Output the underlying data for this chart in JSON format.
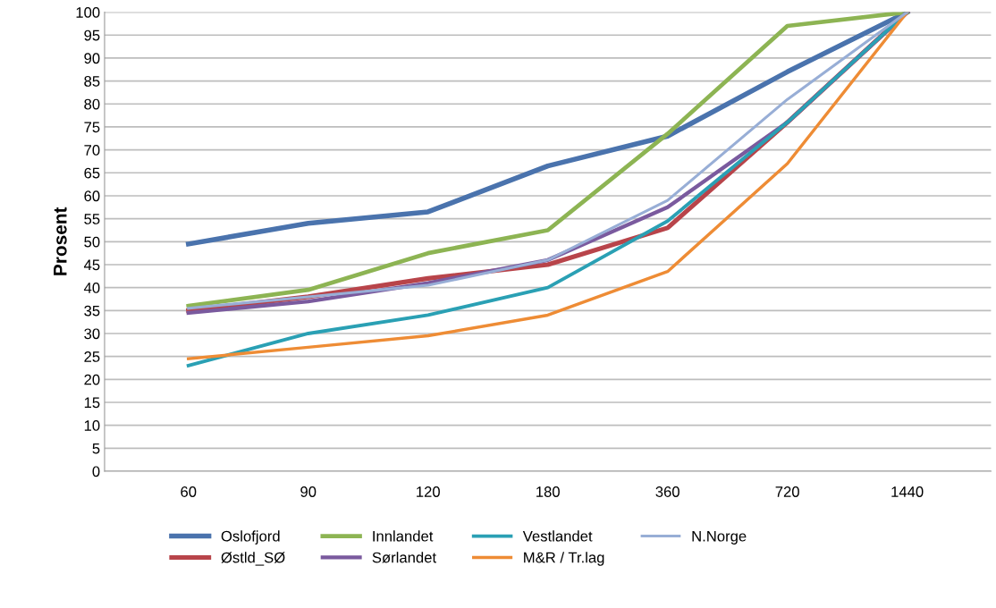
{
  "chart_data": {
    "type": "line",
    "ylabel": "Prosent",
    "categories": [
      "60",
      "90",
      "120",
      "180",
      "360",
      "720",
      "1440"
    ],
    "ylim": [
      0,
      100
    ],
    "yticks": [
      0,
      5,
      10,
      15,
      20,
      25,
      30,
      35,
      40,
      45,
      50,
      55,
      60,
      65,
      70,
      75,
      80,
      85,
      90,
      95,
      100
    ],
    "grid": "y",
    "legend": "bottom",
    "marker": "none",
    "line_style": "solid",
    "series": [
      {
        "name": "Oslofjord",
        "color": "#4a73ad",
        "values": [
          49.5,
          54,
          56.5,
          66.5,
          73,
          87,
          100
        ]
      },
      {
        "name": "Østld_SØ",
        "color": "#b8444a",
        "values": [
          35,
          38,
          42,
          45,
          53,
          76,
          100
        ]
      },
      {
        "name": "Innlandet",
        "color": "#8db453",
        "values": [
          36,
          39.5,
          47.5,
          52.5,
          73.5,
          97,
          100
        ]
      },
      {
        "name": "Sørlandet",
        "color": "#7a5a9e",
        "values": [
          34.5,
          37,
          41,
          46,
          57.5,
          76,
          100
        ]
      },
      {
        "name": "Vestlandet",
        "color": "#2aa0b4",
        "values": [
          23,
          30,
          34,
          40,
          54.5,
          76,
          100
        ]
      },
      {
        "name": "M&R / Tr.lag",
        "color": "#ee8c35",
        "values": [
          24.5,
          27,
          29.5,
          34,
          43.5,
          67,
          100
        ]
      },
      {
        "name": "N.Norge",
        "color": "#98aed6",
        "values": [
          35.5,
          38,
          40.5,
          46,
          59,
          81,
          100
        ]
      }
    ]
  }
}
